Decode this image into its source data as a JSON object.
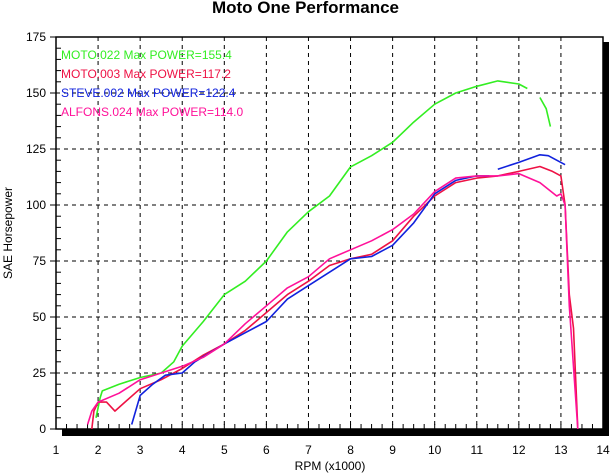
{
  "chart_data": {
    "type": "line",
    "title": "Moto One Performance",
    "xlabel": "RPM (x1000)",
    "ylabel": "SAE Horsepower",
    "xlim": [
      1,
      14
    ],
    "ylim": [
      0,
      175
    ],
    "xticks": [
      1,
      2,
      3,
      4,
      5,
      6,
      7,
      8,
      9,
      10,
      11,
      12,
      13,
      14
    ],
    "yticks": [
      0,
      25,
      50,
      75,
      100,
      125,
      150,
      175
    ],
    "grid": true,
    "legend_position": "top-left",
    "series": [
      {
        "name": "MOTO.022",
        "label": "MOTO.022  Max POWER=155.4",
        "color": "#33ee22",
        "points": [
          [
            1.95,
            5
          ],
          [
            2.05,
            14
          ],
          [
            2.1,
            17
          ],
          [
            2.5,
            20
          ],
          [
            3,
            23
          ],
          [
            3.5,
            25
          ],
          [
            3.8,
            30
          ],
          [
            4,
            37
          ],
          [
            4.5,
            48
          ],
          [
            5,
            60
          ],
          [
            5.5,
            66
          ],
          [
            6,
            75
          ],
          [
            6.5,
            88
          ],
          [
            7,
            97
          ],
          [
            7.5,
            104
          ],
          [
            8,
            117
          ],
          [
            8.5,
            122
          ],
          [
            9,
            128
          ],
          [
            9.5,
            137
          ],
          [
            10,
            145
          ],
          [
            10.5,
            150
          ],
          [
            11,
            153
          ],
          [
            11.5,
            155.4
          ],
          [
            12,
            154
          ],
          [
            12.2,
            152
          ],
          null,
          [
            12.5,
            148
          ],
          [
            12.65,
            143
          ],
          [
            12.75,
            135
          ]
        ]
      },
      {
        "name": "MOTO.003",
        "label": "MOTO.003  Max POWER=117.2",
        "color": "#ee1144",
        "points": [
          [
            1.85,
            0
          ],
          [
            1.9,
            8
          ],
          [
            2,
            12
          ],
          [
            2.2,
            12
          ],
          [
            2.4,
            8
          ],
          [
            2.7,
            13
          ],
          [
            3,
            18
          ],
          [
            3.5,
            22
          ],
          [
            4,
            27
          ],
          [
            4.5,
            33
          ],
          [
            5,
            38
          ],
          [
            5.5,
            44
          ],
          [
            6,
            52
          ],
          [
            6.5,
            60
          ],
          [
            7,
            66
          ],
          [
            7.5,
            73
          ],
          [
            8,
            76
          ],
          [
            8.5,
            78
          ],
          [
            9,
            84
          ],
          [
            9.5,
            95
          ],
          [
            10,
            104
          ],
          [
            10.5,
            110
          ],
          [
            11,
            112
          ],
          [
            11.5,
            113
          ],
          [
            12,
            115
          ],
          [
            12.5,
            117.2
          ],
          [
            12.8,
            115
          ],
          [
            13,
            113
          ],
          [
            13.1,
            100
          ],
          [
            13.2,
            60
          ],
          [
            13.3,
            45
          ],
          [
            13.4,
            0
          ]
        ]
      },
      {
        "name": "STEVE.002",
        "label": "STEVE.002  Max POWER=122.4",
        "color": "#1122dd",
        "points": [
          [
            2.8,
            2
          ],
          [
            3,
            15
          ],
          [
            3.3,
            20
          ],
          [
            3.6,
            24
          ],
          [
            4,
            25
          ],
          [
            4.3,
            30
          ],
          [
            5,
            38
          ],
          [
            5.5,
            43
          ],
          [
            6,
            48
          ],
          [
            6.5,
            58
          ],
          [
            7,
            64
          ],
          [
            7.5,
            70
          ],
          [
            8,
            76
          ],
          [
            8.5,
            77
          ],
          [
            9,
            82
          ],
          [
            9.5,
            92
          ],
          [
            10,
            105
          ],
          [
            10.5,
            111
          ],
          [
            11,
            113
          ],
          [
            11.3,
            113
          ],
          null,
          [
            11.5,
            116
          ],
          [
            12,
            119
          ],
          [
            12.5,
            122.4
          ],
          [
            12.7,
            122
          ],
          [
            13.1,
            118
          ]
        ]
      },
      {
        "name": "ALFONS.024",
        "label": "ALFONS.024  Max POWER=114.0",
        "color": "#ff1199",
        "points": [
          [
            1.75,
            2
          ],
          [
            1.85,
            8
          ],
          [
            2,
            12
          ],
          [
            2.5,
            16
          ],
          [
            3,
            22
          ],
          [
            3.5,
            25
          ],
          [
            4,
            28
          ],
          [
            4.5,
            32
          ],
          [
            5,
            38
          ],
          [
            5.5,
            47
          ],
          [
            6,
            55
          ],
          [
            6.5,
            63
          ],
          [
            7,
            68
          ],
          [
            7.5,
            76
          ],
          [
            8,
            80
          ],
          [
            8.5,
            84
          ],
          [
            9,
            89
          ],
          [
            9.5,
            96
          ],
          [
            10,
            106
          ],
          [
            10.5,
            112
          ],
          [
            11,
            113
          ],
          [
            11.5,
            113
          ],
          [
            12,
            114
          ],
          [
            12.5,
            110
          ],
          [
            12.9,
            104
          ],
          [
            13,
            105
          ],
          [
            13.1,
            100
          ],
          [
            13.2,
            55
          ],
          [
            13.4,
            0
          ]
        ]
      }
    ]
  }
}
